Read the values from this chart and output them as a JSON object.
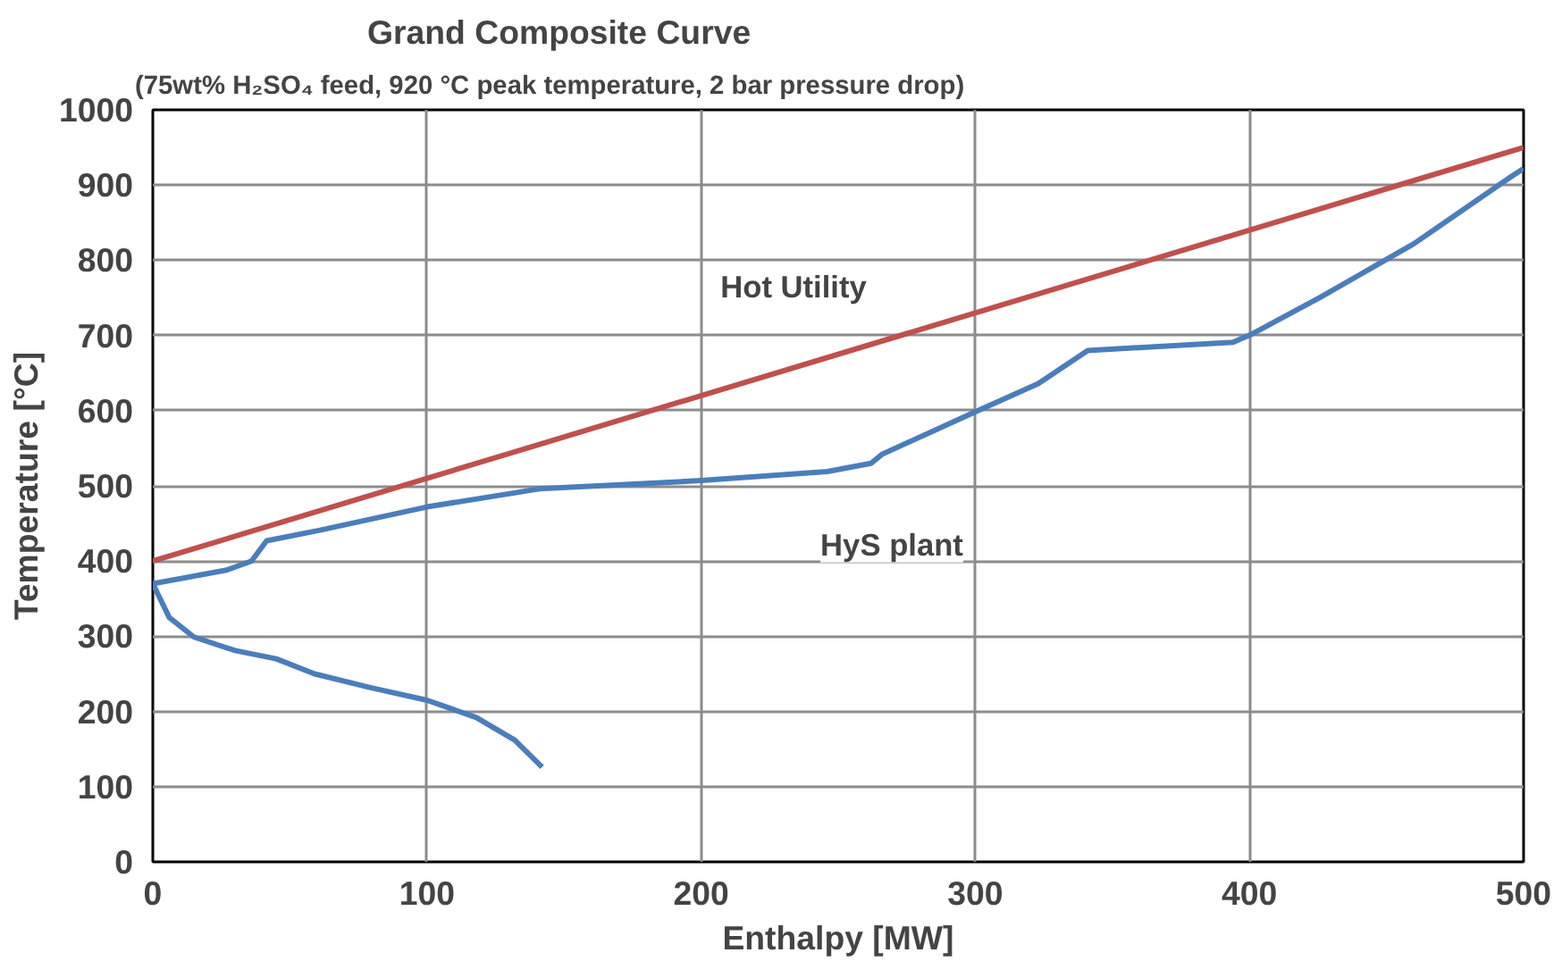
{
  "chart_data": {
    "type": "line",
    "title": "Grand Composite Curve",
    "subtitle": "(75wt% H₂SO₄ feed, 920 °C peak temperature, 2 bar pressure drop)",
    "xlabel": "Enthalpy [MW]",
    "ylabel": "Temperature [°C]",
    "xlim": [
      0,
      500
    ],
    "ylim": [
      0,
      1000
    ],
    "xticks": [
      0,
      100,
      200,
      300,
      400,
      500
    ],
    "yticks": [
      0,
      100,
      200,
      300,
      400,
      500,
      600,
      700,
      800,
      900,
      1000
    ],
    "grid": true,
    "line_style": "solid",
    "series": [
      {
        "name": "Hot Utility",
        "color": "#c0504d",
        "x": [
          0,
          500
        ],
        "values": [
          400,
          950
        ]
      },
      {
        "name": "HyS plant",
        "color": "#4a7ebb",
        "x": [
          142,
          132,
          118,
          100,
          79,
          59,
          45,
          30,
          15,
          6,
          0,
          27,
          36,
          41.5,
          61,
          100,
          141,
          200,
          246,
          262,
          266,
          301,
          323,
          341,
          394,
          401,
          426,
          460,
          495,
          500
        ],
        "values": [
          126,
          162,
          192,
          215,
          232,
          250,
          270,
          281,
          299,
          325,
          370,
          388,
          400,
          427,
          441,
          472,
          496,
          507,
          519,
          530,
          542,
          600,
          636,
          680,
          691,
          702,
          751,
          822,
          910,
          922
        ]
      }
    ]
  }
}
